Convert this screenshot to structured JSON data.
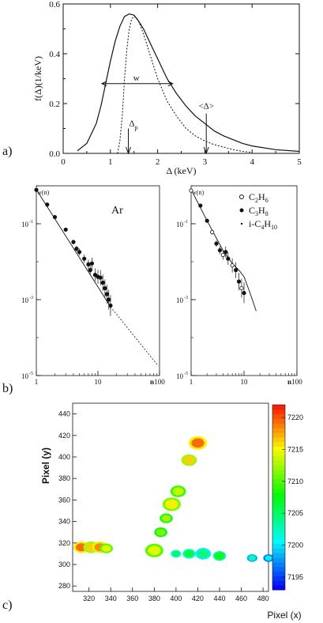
{
  "panels": {
    "a": "a)",
    "b": "b)",
    "c": "c)"
  },
  "chart_data": [
    {
      "type": "line",
      "xlabel": "Δ (keV)",
      "ylabel": "f(Δ)(1/keV)",
      "xlim": [
        0,
        5
      ],
      "ylim": [
        0,
        0.6
      ],
      "xticks": [
        0,
        1,
        2,
        3,
        4,
        5
      ],
      "yticks": [
        0,
        0.2,
        0.4,
        0.6
      ],
      "annotations": {
        "width": "w",
        "most_probable": "Δ",
        "most_probable_sub": "p",
        "mean": "<Δ>"
      },
      "series": [
        {
          "style": "solid",
          "x": [
            0.3,
            0.5,
            0.7,
            0.8,
            0.9,
            1.0,
            1.1,
            1.2,
            1.3,
            1.4,
            1.5,
            1.6,
            1.7,
            1.8,
            1.9,
            2.0,
            2.2,
            2.4,
            2.6,
            2.8,
            3.0,
            3.2,
            3.4,
            3.6,
            3.8,
            4.0,
            4.5,
            5.0
          ],
          "y": [
            0.01,
            0.04,
            0.12,
            0.19,
            0.28,
            0.37,
            0.45,
            0.51,
            0.55,
            0.56,
            0.555,
            0.53,
            0.5,
            0.46,
            0.42,
            0.38,
            0.3,
            0.24,
            0.19,
            0.15,
            0.12,
            0.09,
            0.07,
            0.055,
            0.04,
            0.03,
            0.015,
            0.008
          ]
        },
        {
          "style": "dotted",
          "x": [
            1.15,
            1.2,
            1.25,
            1.3,
            1.35,
            1.4,
            1.45,
            1.5,
            1.55,
            1.6,
            1.7,
            1.8,
            1.9,
            2.0,
            2.2,
            2.4,
            2.6,
            2.8,
            3.0,
            3.2,
            3.4,
            3.6,
            3.8,
            4.0
          ],
          "y": [
            0.0,
            0.05,
            0.15,
            0.3,
            0.42,
            0.5,
            0.54,
            0.55,
            0.545,
            0.53,
            0.48,
            0.42,
            0.36,
            0.3,
            0.21,
            0.15,
            0.1,
            0.07,
            0.05,
            0.035,
            0.025,
            0.015,
            0.008,
            0.004
          ]
        }
      ]
    },
    {
      "type": "scatter",
      "xscale": "log",
      "yscale": "log",
      "xlabel": "n",
      "ylabel": "w(n)",
      "xlim": [
        1,
        100
      ],
      "ylim": [
        1e-05,
        1
      ],
      "xticks": [
        1,
        10,
        100
      ],
      "xtick_labels": [
        "1",
        "10",
        "100"
      ],
      "yticks": [
        1e-05,
        0.001,
        0.1
      ],
      "ytick_labels": [
        "10",
        "10",
        "10"
      ],
      "ytick_exponents": [
        "-5",
        "-3",
        "-1"
      ],
      "title_inset": "Ar",
      "points": [
        {
          "x": 1,
          "y": 0.78
        },
        {
          "x": 1.5,
          "y": 0.32
        },
        {
          "x": 2,
          "y": 0.15
        },
        {
          "x": 3,
          "y": 0.07
        },
        {
          "x": 4,
          "y": 0.033
        },
        {
          "x": 4.5,
          "y": 0.022
        },
        {
          "x": 5,
          "y": 0.018
        },
        {
          "x": 6,
          "y": 0.012
        },
        {
          "x": 7,
          "y": 0.0085
        },
        {
          "x": 7.5,
          "y": 0.006
        },
        {
          "x": 8,
          "y": 0.009
        },
        {
          "x": 9,
          "y": 0.0045
        },
        {
          "x": 10,
          "y": 0.004
        },
        {
          "x": 11,
          "y": 0.0038
        },
        {
          "x": 12,
          "y": 0.0028
        },
        {
          "x": 13,
          "y": 0.002
        },
        {
          "x": 14,
          "y": 0.0014
        },
        {
          "x": 15,
          "y": 0.001
        },
        {
          "x": 16,
          "y": 0.0007
        }
      ],
      "fit_solid": {
        "x": [
          1,
          16
        ],
        "y": [
          0.8,
          0.00065
        ]
      },
      "fit_dotted": {
        "x": [
          16,
          95
        ],
        "y": [
          0.00065,
          1.8e-05
        ]
      }
    },
    {
      "type": "scatter",
      "xscale": "log",
      "yscale": "log",
      "xlabel": "n",
      "ylabel": "w(n)",
      "xlim": [
        1,
        100
      ],
      "ylim": [
        1e-05,
        1
      ],
      "xticks": [
        1,
        10,
        100
      ],
      "xtick_labels": [
        "1",
        "10",
        "100"
      ],
      "yticks": [
        1e-05,
        0.001,
        0.1
      ],
      "ytick_labels": [
        "10",
        "10",
        "10"
      ],
      "ytick_exponents": [
        "-5",
        "-3",
        "-1"
      ],
      "legend": [
        {
          "marker": "open-circle",
          "base": "C",
          "s1": "2",
          "mid": "H",
          "s2": "6"
        },
        {
          "marker": "filled-circle",
          "base": "C",
          "s1": "3",
          "mid": "H",
          "s2": "8"
        },
        {
          "marker": "dot",
          "base": "i-C",
          "s1": "4",
          "mid": "H",
          "s2": "10"
        }
      ],
      "points": [
        {
          "x": 1,
          "y": 0.75
        },
        {
          "x": 1.5,
          "y": 0.3
        },
        {
          "x": 2,
          "y": 0.12
        },
        {
          "x": 2.5,
          "y": 0.06
        },
        {
          "x": 3,
          "y": 0.03
        },
        {
          "x": 3.5,
          "y": 0.02
        },
        {
          "x": 4,
          "y": 0.015
        },
        {
          "x": 4.5,
          "y": 0.018
        },
        {
          "x": 5,
          "y": 0.012
        },
        {
          "x": 6,
          "y": 0.008
        },
        {
          "x": 7,
          "y": 0.006
        },
        {
          "x": 8,
          "y": 0.003
        },
        {
          "x": 9,
          "y": 0.002
        },
        {
          "x": 10,
          "y": 0.0015
        }
      ],
      "fit_solid": {
        "x": [
          1,
          2,
          4,
          6,
          8,
          10,
          13,
          17
        ],
        "y": [
          0.8,
          0.12,
          0.02,
          0.009,
          0.006,
          0.004,
          0.0015,
          0.0005
        ]
      }
    },
    {
      "type": "heatmap",
      "xlabel": "Pixel (x)",
      "ylabel": "Pixel (y)",
      "xlim": [
        305,
        485
      ],
      "ylim": [
        275,
        450
      ],
      "xticks": [
        320,
        340,
        360,
        380,
        400,
        420,
        440,
        460,
        480
      ],
      "yticks": [
        280,
        300,
        320,
        340,
        360,
        380,
        400,
        420,
        440
      ],
      "colorbar": {
        "min": 7193,
        "max": 7222,
        "ticks": [
          7195,
          7200,
          7205,
          7210,
          7215,
          7220
        ]
      },
      "blobs": [
        {
          "x": 313,
          "y": 316,
          "r": 6,
          "v": 7219
        },
        {
          "x": 322,
          "y": 316,
          "r": 6,
          "v": 7216
        },
        {
          "x": 330,
          "y": 316,
          "r": 6,
          "v": 7218
        },
        {
          "x": 336,
          "y": 315,
          "r": 5,
          "v": 7214
        },
        {
          "x": 380,
          "y": 313,
          "r": 7,
          "v": 7214
        },
        {
          "x": 386,
          "y": 330,
          "r": 5,
          "v": 7211
        },
        {
          "x": 391,
          "y": 343,
          "r": 5,
          "v": 7212
        },
        {
          "x": 396,
          "y": 356,
          "r": 7,
          "v": 7215
        },
        {
          "x": 402,
          "y": 368,
          "r": 6,
          "v": 7213
        },
        {
          "x": 412,
          "y": 397,
          "r": 6,
          "v": 7216
        },
        {
          "x": 420,
          "y": 413,
          "r": 7,
          "v": 7219
        },
        {
          "x": 400,
          "y": 310,
          "r": 4,
          "v": 7205
        },
        {
          "x": 412,
          "y": 310,
          "r": 5,
          "v": 7206
        },
        {
          "x": 425,
          "y": 310,
          "r": 6,
          "v": 7204
        },
        {
          "x": 440,
          "y": 308,
          "r": 5,
          "v": 7207
        },
        {
          "x": 470,
          "y": 306,
          "r": 4,
          "v": 7202
        },
        {
          "x": 485,
          "y": 306,
          "r": 4,
          "v": 7200
        }
      ]
    }
  ]
}
